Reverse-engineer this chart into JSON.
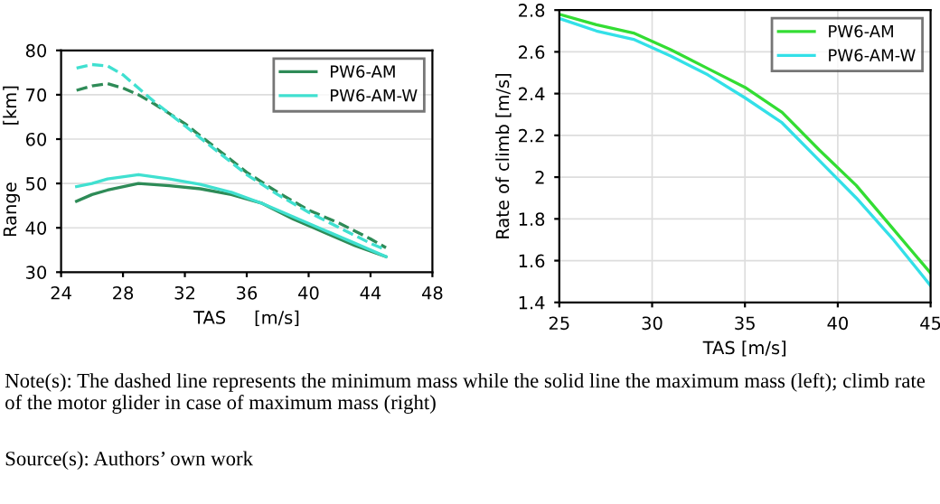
{
  "chart_data": [
    {
      "type": "line",
      "xlabel": "TAS     [m/s]",
      "ylabel": "Range          [km]",
      "xlim": [
        24,
        48
      ],
      "xticks": [
        24,
        28,
        32,
        36,
        40,
        44,
        48
      ],
      "ylim": [
        30,
        80
      ],
      "yticks": [
        30,
        40,
        50,
        60,
        70,
        80
      ],
      "grid": "y",
      "legend": "top right",
      "series": [
        {
          "color": "#2e8b57",
          "line_style": "dashed",
          "x": [
            25,
            26,
            27,
            28,
            29,
            30,
            32,
            34,
            36,
            38,
            40,
            42,
            44,
            45
          ],
          "values": [
            71,
            72,
            72.5,
            71.5,
            70,
            68,
            63.5,
            58,
            52.5,
            48,
            44,
            41,
            37.5,
            35.5
          ]
        },
        {
          "color": "#40e0d0",
          "line_style": "dashed",
          "x": [
            25,
            26,
            27,
            28,
            29,
            30,
            32,
            34,
            36,
            38,
            40,
            42,
            44,
            45
          ],
          "values": [
            76,
            76.8,
            76.5,
            74.5,
            71.5,
            68.5,
            63,
            57.5,
            52,
            47.5,
            43.5,
            40,
            36.5,
            35
          ]
        },
        {
          "name": "PW6-AM",
          "color": "#2e8b57",
          "line_style": "solid",
          "x": [
            25,
            26,
            27,
            29,
            31,
            33,
            35,
            37,
            39,
            41,
            43,
            45
          ],
          "values": [
            46,
            47.5,
            48.5,
            50,
            49.5,
            48.8,
            47.5,
            45.5,
            42,
            39,
            36,
            33.5
          ]
        },
        {
          "name": "PW6-AM-W",
          "color": "#40e0d0",
          "line_style": "solid",
          "x": [
            25,
            26,
            27,
            29,
            31,
            33,
            35,
            37,
            39,
            41,
            43,
            45
          ],
          "values": [
            49.3,
            50,
            51,
            52,
            51,
            49.8,
            48,
            45.5,
            42.5,
            39.5,
            36.5,
            33.5
          ]
        }
      ],
      "annotations": [
        "Note(s): The dashed line represents the minimum mass while the solid line the maximum mass (left); climb rate of the motor glider in case of maximum mass (right)",
        "Source(s): Authors’ own work"
      ]
    },
    {
      "type": "line",
      "xlabel": "TAS [m/s]",
      "ylabel": "Rate of climb [m/s]",
      "xlim": [
        25,
        45
      ],
      "xticks": [
        25,
        30,
        35,
        40,
        45
      ],
      "ylim": [
        1.4,
        2.8
      ],
      "yticks": [
        1.4,
        1.6,
        1.8,
        2,
        2.2,
        2.4,
        2.6,
        2.8
      ],
      "grid": true,
      "legend": "top right",
      "series": [
        {
          "name": "PW6-AM",
          "color": "#33dd33",
          "line_style": "solid",
          "x": [
            25,
            27,
            29,
            31,
            33,
            35,
            37,
            39,
            41,
            43,
            45
          ],
          "values": [
            2.78,
            2.73,
            2.69,
            2.61,
            2.52,
            2.43,
            2.31,
            2.13,
            1.96,
            1.75,
            1.54
          ]
        },
        {
          "name": "PW6-AM-W",
          "color": "#33e0e8",
          "line_style": "solid",
          "x": [
            25,
            27,
            29,
            31,
            33,
            35,
            37,
            39,
            41,
            43,
            45
          ],
          "values": [
            2.76,
            2.7,
            2.66,
            2.58,
            2.49,
            2.38,
            2.26,
            2.08,
            1.9,
            1.7,
            1.48
          ]
        }
      ]
    }
  ]
}
